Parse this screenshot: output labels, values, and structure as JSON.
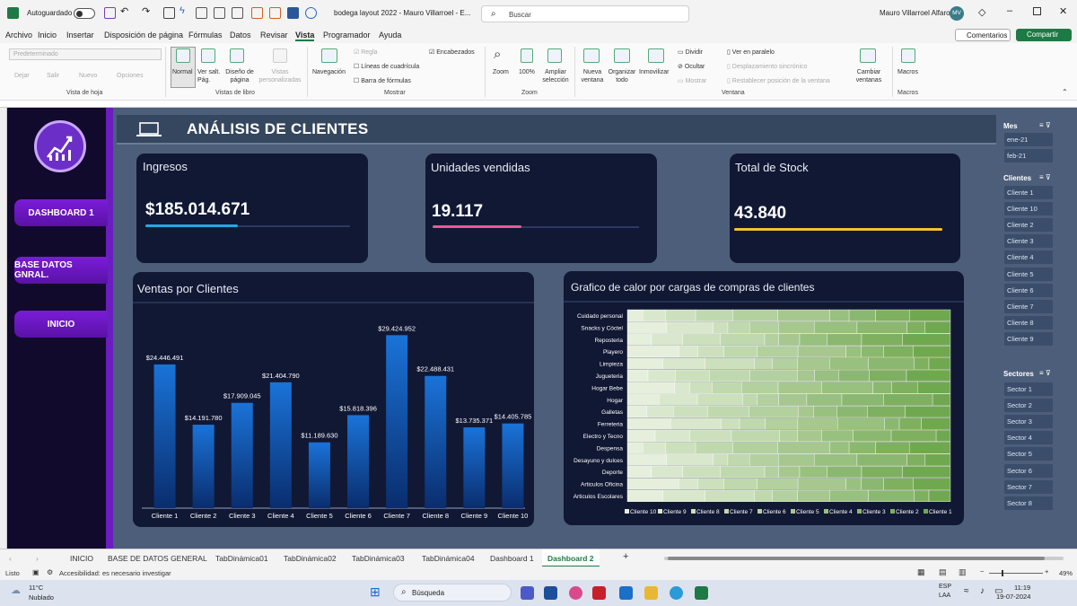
{
  "window": {
    "autosave": "Autoguardado",
    "doc_title": "bodega layout 2022 - Mauro Villarroel - E...",
    "search_placeholder": "Buscar",
    "user_name": "Mauro Villarroel Alfaro",
    "user_initials": "MV"
  },
  "menu": [
    "Archivo",
    "Inicio",
    "Insertar",
    "Disposición de página",
    "Fórmulas",
    "Datos",
    "Revisar",
    "Vista",
    "Programador",
    "Ayuda"
  ],
  "menu_active": "Vista",
  "menu_right": {
    "comments": "Comentarios",
    "share": "Compartir"
  },
  "ribbon": {
    "sheet_view": {
      "dropdown": "Predeterminado",
      "keep": "Dejar",
      "exit": "Salir",
      "new": "Nuevo",
      "options": "Opciones",
      "group": "Vista de hoja"
    },
    "workbook_views": {
      "normal": "Normal",
      "page_break": "Ver salt. Pág.",
      "page_layout": "Diseño de página",
      "custom": "Vistas personalizadas",
      "group": "Vistas de libro"
    },
    "show": {
      "navigation": "Navegación",
      "ruler": "Regla",
      "gridlines": "Líneas de cuadrícula",
      "formula_bar": "Barra de fórmulas",
      "headings": "Encabezados",
      "group": "Mostrar"
    },
    "zoom": {
      "zoom": "Zoom",
      "hundred": "100%",
      "selection": "Ampliar selección",
      "group": "Zoom"
    },
    "window": {
      "new_window": "Nueva ventana",
      "arrange": "Organizar todo",
      "freeze": "Inmovilizar",
      "split": "Dividir",
      "hide": "Ocultar",
      "show": "Mostrar",
      "side_by_side": "Ver en paralelo",
      "sync_scroll": "Desplazamiento sincrónico",
      "reset": "Restablecer posición de la ventana",
      "switch": "Cambiar ventanas",
      "group": "Ventana"
    },
    "macros": {
      "macros": "Macros",
      "group": "Macros"
    }
  },
  "sidebar": {
    "items": [
      "DASHBOARD 1",
      "BASE DATOS GNRAL.",
      "INICIO"
    ]
  },
  "header": {
    "title": "ANÁLISIS DE CLIENTES"
  },
  "kpis": {
    "ingresos": {
      "label": "Ingresos",
      "value": "$185.014.671",
      "fill": 0.45,
      "color": "#27a6e8"
    },
    "unidades": {
      "label": "Unidades vendidas",
      "value": "19.117",
      "fill": 0.43,
      "color": "#e75a9a"
    },
    "stock": {
      "label": "Total de Stock",
      "value": "43.840",
      "fill": 1.0,
      "color": "#f1c232"
    }
  },
  "chart_data": [
    {
      "type": "bar",
      "title": "Ventas por Clientes",
      "categories": [
        "Cliente 1",
        "Cliente 2",
        "Cliente 3",
        "Cliente 4",
        "Cliente 5",
        "Cliente 6",
        "Cliente 7",
        "Cliente 8",
        "Cliente 9",
        "Cliente 10"
      ],
      "values": [
        24446491,
        14191780,
        17909045,
        21404790,
        11189630,
        15818396,
        29424952,
        22488431,
        13735371,
        14405785
      ],
      "labels": [
        "$24.446.491",
        "$14.191.780",
        "$17.909.045",
        "$21.404.790",
        "$11.189.630",
        "$15.818.396",
        "$29.424.952",
        "$22.488.431",
        "$13.735.371",
        "$14.405.785"
      ],
      "ylim": [
        0,
        31000000
      ],
      "bar_color": "#1565c0"
    },
    {
      "type": "bar",
      "stacked": true,
      "orientation": "horizontal",
      "title": "Grafico de calor por cargas de compras de clientes",
      "categories": [
        "Cuidado personal",
        "Snacks y Cóctel",
        "Reposteria",
        "Playero",
        "Limpieza",
        "Jugueteria",
        "Hogar Bebe",
        "Hogar",
        "Galletas",
        "Ferreteria",
        "Electro y Tecno",
        "Despensa",
        "Desayuno y dulces",
        "Deporte",
        "Articulos Oficina",
        "Articulos Escolares"
      ],
      "legend": [
        "Cliente 10",
        "Cliente 9",
        "Cliente 8",
        "Cliente 7",
        "Cliente 6",
        "Cliente 5",
        "Cliente 4",
        "Cliente 3",
        "Cliente 2",
        "Cliente 1"
      ],
      "legend_position": "bottom",
      "note": "100% stacked; segment shares estimated"
    }
  ],
  "slicers": {
    "mes": {
      "title": "Mes",
      "items": [
        "ene-21",
        "feb-21"
      ]
    },
    "clientes": {
      "title": "Clientes",
      "items": [
        "Cliente 1",
        "Cliente 10",
        "Cliente 2",
        "Cliente 3",
        "Cliente 4",
        "Cliente 5",
        "Cliente 6",
        "Cliente 7",
        "Cliente 8",
        "Cliente 9"
      ]
    },
    "sectores": {
      "title": "Sectores",
      "items": [
        "Sector 1",
        "Sector 2",
        "Sector 3",
        "Sector 4",
        "Sector 5",
        "Sector 6",
        "Sector 7",
        "Sector 8"
      ]
    }
  },
  "sheet_tabs": [
    "INICIO",
    "BASE DE DATOS GENERAL",
    "TabDinámica01",
    "TabDinámica02",
    "TabDinámica03",
    "TabDinámica04",
    "Dashboard 1",
    "Dashboard 2"
  ],
  "active_tab": "Dashboard 2",
  "status": {
    "ready": "Listo",
    "accessibility": "Accesibilidad: es necesario investigar",
    "zoom": "49%"
  },
  "taskbar": {
    "weather_temp": "11°C",
    "weather_desc": "Nublado",
    "search": "Búsqueda",
    "lang1": "ESP",
    "lang2": "LAA",
    "time": "11:19",
    "date": "19-07-2024"
  }
}
